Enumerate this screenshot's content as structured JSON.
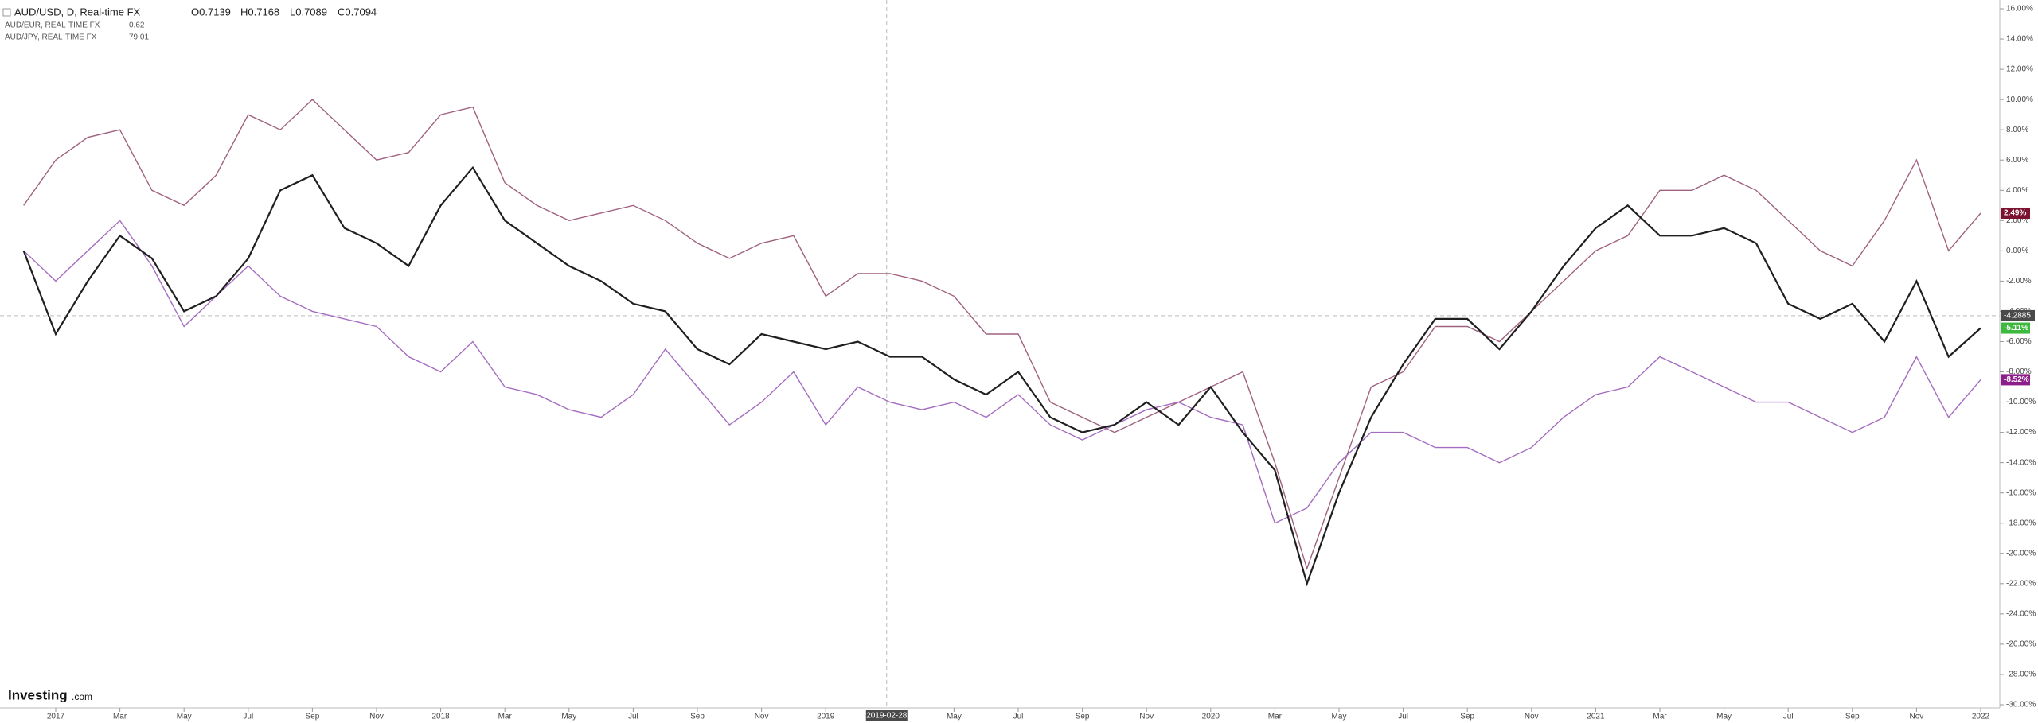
{
  "chart_data": {
    "type": "line",
    "title": "AUD/USD, D, Real-time FX",
    "ohlc": [
      "O0.7139",
      "H0.7168",
      "L0.7089",
      "C0.7094"
    ],
    "x": [
      "2016-12",
      "2017-01",
      "2017-02",
      "2017-03",
      "2017-04",
      "2017-05",
      "2017-06",
      "2017-07",
      "2017-08",
      "2017-09",
      "2017-10",
      "2017-11",
      "2017-12",
      "2018-01",
      "2018-02",
      "2018-03",
      "2018-04",
      "2018-05",
      "2018-06",
      "2018-07",
      "2018-08",
      "2018-09",
      "2018-10",
      "2018-11",
      "2018-12",
      "2019-01",
      "2019-02",
      "2019-03",
      "2019-04",
      "2019-05",
      "2019-06",
      "2019-07",
      "2019-08",
      "2019-09",
      "2019-10",
      "2019-11",
      "2019-12",
      "2020-01",
      "2020-02",
      "2020-03",
      "2020-04",
      "2020-05",
      "2020-06",
      "2020-07",
      "2020-08",
      "2020-09",
      "2020-10",
      "2020-11",
      "2020-12",
      "2021-01",
      "2021-02",
      "2021-03",
      "2021-04",
      "2021-05",
      "2021-06",
      "2021-07",
      "2021-08",
      "2021-09",
      "2021-10",
      "2021-11",
      "2021-12",
      "2022-01"
    ],
    "series": [
      {
        "name": "AUD/USD, D, Real-time FX",
        "color": "#1f1f1f",
        "values": [
          0,
          -5.5,
          -2,
          1,
          -0.5,
          -4,
          -3,
          -0.5,
          4,
          5,
          1.5,
          0.5,
          -1,
          3,
          5.5,
          2,
          0.5,
          -1,
          -2,
          -3.5,
          -4,
          -6.5,
          -7.5,
          -5.5,
          -6,
          -6.5,
          -6,
          -7,
          -7,
          -8.5,
          -9.5,
          -8,
          -11,
          -12,
          -11.5,
          -10,
          -11.5,
          -9,
          -12,
          -14.5,
          -22,
          -16,
          -11,
          -7.5,
          -4.5,
          -4.5,
          -6.5,
          -4,
          -1,
          1.5,
          3,
          1,
          1,
          1.5,
          0.5,
          -3.5,
          -4.5,
          -3.5,
          -6,
          -2,
          -7,
          -5.11
        ]
      },
      {
        "name": "AUD/EUR, REAL-TIME FX",
        "last": "0.62",
        "color": "#a46cc0",
        "values": [
          0,
          -2,
          0,
          2,
          -1,
          -5,
          -3,
          -1,
          -3,
          -4,
          -4.5,
          -5,
          -7,
          -8,
          -6,
          -9,
          -9.5,
          -10.5,
          -11,
          -9.5,
          -6.5,
          -9,
          -11.5,
          -10,
          -8,
          -11.5,
          -9,
          -10,
          -10.5,
          -10,
          -11,
          -9.5,
          -11.5,
          -12.5,
          -11.5,
          -10.5,
          -10,
          -11,
          -11.5,
          -18,
          -17,
          -14,
          -12,
          -12,
          -13,
          -13,
          -14,
          -13,
          -11,
          -9.5,
          -9,
          -7,
          -8,
          -9,
          -10,
          -10,
          -11,
          -12,
          -11,
          -7,
          -11,
          -8.52
        ]
      },
      {
        "name": "AUD/JPY, REAL-TIME FX",
        "last": "79.01",
        "color": "#a0607f",
        "values": [
          3,
          6,
          7.5,
          8,
          4,
          3,
          5,
          9,
          8,
          10,
          8,
          6,
          6.5,
          9,
          9.5,
          4.5,
          3,
          2,
          2.5,
          3,
          2,
          0.5,
          -0.5,
          0.5,
          1,
          -3,
          -1.5,
          -1.5,
          -2,
          -3,
          -5.5,
          -5.5,
          -10,
          -11,
          -12,
          -11,
          -10,
          -9,
          -8,
          -14,
          -21,
          -15,
          -9,
          -8,
          -5,
          -5,
          -6,
          -4,
          -2,
          0,
          1,
          4,
          4,
          5,
          4,
          2,
          0,
          -1,
          2,
          6,
          0,
          2.49
        ]
      }
    ],
    "ylim": [
      -30,
      16
    ],
    "yticks": [
      {
        "value": 16,
        "label": "16.00%"
      },
      {
        "value": 14,
        "label": "14.00%"
      },
      {
        "value": 12,
        "label": "12.00%"
      },
      {
        "value": 10,
        "label": "10.00%"
      },
      {
        "value": 8,
        "label": "8.00%"
      },
      {
        "value": 6,
        "label": "6.00%"
      },
      {
        "value": 4,
        "label": "4.00%"
      },
      {
        "value": 2,
        "label": "2.00%"
      },
      {
        "value": 0,
        "label": "0.00%"
      },
      {
        "value": -2,
        "label": "-2.00%"
      },
      {
        "value": -4,
        "label": "-4.00%"
      },
      {
        "value": -6,
        "label": "-6.00%"
      },
      {
        "value": -8,
        "label": "-8.00%"
      },
      {
        "value": -10,
        "label": "-10.00%"
      },
      {
        "value": -12,
        "label": "-12.00%"
      },
      {
        "value": -14,
        "label": "-14.00%"
      },
      {
        "value": -16,
        "label": "-16.00%"
      },
      {
        "value": -18,
        "label": "-18.00%"
      },
      {
        "value": -20,
        "label": "-20.00%"
      },
      {
        "value": -22,
        "label": "-22.00%"
      },
      {
        "value": -24,
        "label": "-24.00%"
      },
      {
        "value": -26,
        "label": "-26.00%"
      },
      {
        "value": -28,
        "label": "-28.00%"
      },
      {
        "value": -30,
        "label": "-30.00%"
      }
    ],
    "xticks": [
      {
        "value": "2017-01",
        "label": "2017"
      },
      {
        "value": "2017-03",
        "label": "Mar"
      },
      {
        "value": "2017-05",
        "label": "May"
      },
      {
        "value": "2017-07",
        "label": "Jul"
      },
      {
        "value": "2017-09",
        "label": "Sep"
      },
      {
        "value": "2017-11",
        "label": "Nov"
      },
      {
        "value": "2018-01",
        "label": "2018"
      },
      {
        "value": "2018-03",
        "label": "Mar"
      },
      {
        "value": "2018-05",
        "label": "May"
      },
      {
        "value": "2018-07",
        "label": "Jul"
      },
      {
        "value": "2018-09",
        "label": "Sep"
      },
      {
        "value": "2018-11",
        "label": "Nov"
      },
      {
        "value": "2019-01",
        "label": "2019"
      },
      {
        "value": "2019-05",
        "label": "May"
      },
      {
        "value": "2019-07",
        "label": "Jul"
      },
      {
        "value": "2019-09",
        "label": "Sep"
      },
      {
        "value": "2019-11",
        "label": "Nov"
      },
      {
        "value": "2020-01",
        "label": "2020"
      },
      {
        "value": "2020-03",
        "label": "Mar"
      },
      {
        "value": "2020-05",
        "label": "May"
      },
      {
        "value": "2020-07",
        "label": "Jul"
      },
      {
        "value": "2020-09",
        "label": "Sep"
      },
      {
        "value": "2020-11",
        "label": "Nov"
      },
      {
        "value": "2021-01",
        "label": "2021"
      },
      {
        "value": "2021-03",
        "label": "Mar"
      },
      {
        "value": "2021-05",
        "label": "May"
      },
      {
        "value": "2021-07",
        "label": "Jul"
      },
      {
        "value": "2021-09",
        "label": "Sep"
      },
      {
        "value": "2021-11",
        "label": "Nov"
      },
      {
        "value": "2022-01",
        "label": "2022"
      }
    ],
    "price_lines": [
      {
        "value": 2.49,
        "label": "2.49%",
        "color": "#7a1230"
      },
      {
        "value": -5.11,
        "label": "-5.11%",
        "color": "#3fb83f"
      },
      {
        "value": -8.52,
        "label": "-8.52%",
        "color": "#8e1d8c"
      }
    ],
    "crosshair": {
      "x": "2019-02-28",
      "y": -4.2885
    }
  },
  "watermark": {
    "name": "Investing",
    "suffix": ".com"
  }
}
